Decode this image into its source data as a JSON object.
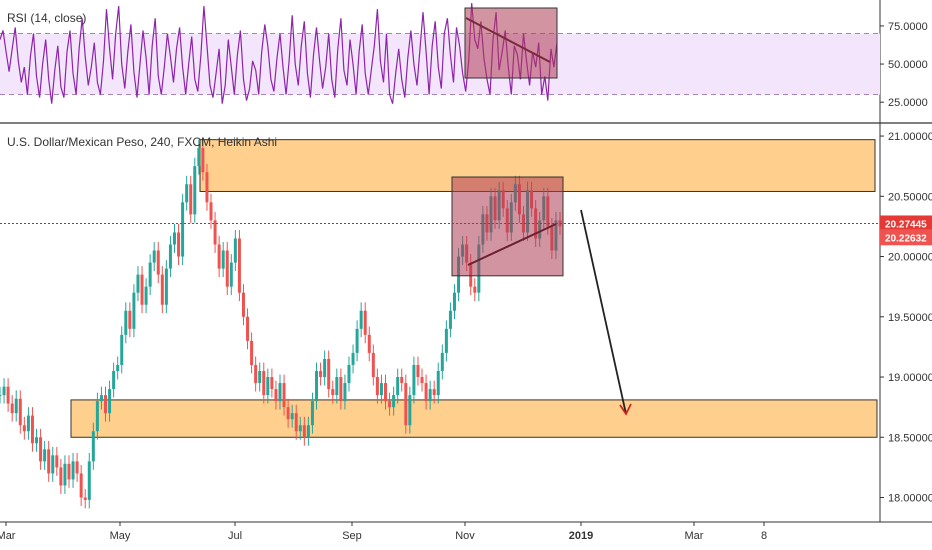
{
  "chart_data": [
    {
      "type": "line",
      "title": "RSI (14, close)",
      "ylim": [
        12,
        92
      ],
      "y_ticks": [
        25,
        50,
        75
      ],
      "y_tick_labels": [
        "25.0000",
        "50.0000",
        "75.0000"
      ],
      "band": [
        30,
        70
      ],
      "series": [
        {
          "color": "#8e24aa",
          "x": [
            0,
            3,
            6,
            9,
            12,
            15,
            18,
            21,
            24,
            27,
            30,
            33,
            36,
            39,
            42,
            45,
            48,
            51,
            54,
            57,
            60,
            63,
            66,
            69,
            72,
            75,
            78,
            81,
            84,
            87,
            90,
            93,
            96,
            99,
            102,
            105,
            108,
            111,
            114,
            117,
            120,
            123,
            126,
            129,
            132,
            135,
            138,
            141,
            144,
            147,
            150,
            153,
            156,
            159,
            162,
            165,
            168,
            171,
            174,
            177,
            180,
            183,
            186,
            189,
            192,
            195,
            198,
            201,
            204,
            207,
            210,
            213,
            216,
            219,
            222,
            225,
            228,
            231,
            234,
            237,
            240,
            243,
            246,
            249,
            252,
            255,
            258,
            261,
            264,
            267,
            270,
            273,
            276,
            279,
            282,
            285,
            288,
            291,
            294,
            297,
            300,
            303,
            306,
            309,
            312,
            315,
            318,
            321,
            324,
            327,
            330,
            333,
            336,
            339,
            342,
            345,
            348,
            351,
            354,
            357,
            360,
            363,
            366,
            369,
            372,
            375,
            378,
            381,
            384,
            387,
            390,
            393,
            396,
            399,
            402,
            405,
            408,
            411,
            414,
            417,
            420,
            423,
            426,
            429,
            432,
            435,
            438,
            441,
            444,
            447,
            450,
            453,
            456,
            459,
            462,
            465,
            468,
            471,
            474,
            477,
            480,
            483,
            486,
            489,
            492,
            495,
            498,
            501,
            504,
            507,
            510,
            513,
            516,
            519,
            522,
            525,
            528,
            531,
            534,
            537,
            540,
            543,
            546,
            549
          ],
          "values": [
            66,
            72,
            58,
            45,
            60,
            74,
            52,
            38,
            48,
            30,
            55,
            70,
            42,
            28,
            50,
            66,
            40,
            24,
            46,
            62,
            35,
            28,
            58,
            72,
            44,
            30,
            60,
            80,
            55,
            36,
            48,
            64,
            38,
            30,
            52,
            86,
            60,
            40,
            70,
            88,
            50,
            34,
            58,
            76,
            45,
            28,
            50,
            72,
            54,
            30,
            62,
            80,
            42,
            30,
            48,
            70,
            55,
            38,
            60,
            74,
            48,
            30,
            50,
            68,
            40,
            32,
            56,
            88,
            62,
            36,
            28,
            44,
            60,
            24,
            36,
            66,
            48,
            30,
            56,
            72,
            40,
            26,
            34,
            52,
            46,
            30,
            58,
            76,
            62,
            40,
            32,
            54,
            70,
            48,
            30,
            52,
            82,
            50,
            36,
            62,
            78,
            44,
            28,
            56,
            74,
            52,
            34,
            48,
            70,
            40,
            28,
            60,
            80,
            46,
            36,
            66,
            50,
            30,
            58,
            76,
            44,
            30,
            46,
            62,
            86,
            52,
            38,
            70,
            30,
            24,
            44,
            60,
            40,
            28,
            54,
            72,
            50,
            36,
            60,
            84,
            58,
            30,
            62,
            78,
            48,
            34,
            70,
            80,
            56,
            38,
            74,
            62,
            44,
            32,
            52,
            90,
            66,
            60,
            78,
            54,
            40,
            30,
            66,
            84,
            46,
            58,
            72,
            48,
            30,
            62,
            56,
            40,
            70,
            52,
            36,
            58,
            48,
            64,
            30,
            42,
            26,
            60,
            48,
            64
          ]
        }
      ]
    },
    {
      "type": "line",
      "title": "U.S. Dollar/Mexican Peso, 240, FXCM, Heikin Ashi",
      "ylim": [
        17.83,
        21.1
      ],
      "y_ticks": [
        18.0,
        18.5,
        19.0,
        19.5,
        20.0,
        20.5,
        21.0
      ],
      "y_tick_labels": [
        "18.00000",
        "18.50000",
        "19.00000",
        "19.50000",
        "20.00000",
        "20.50000",
        "21.00000"
      ],
      "x_labels": [
        "Mar",
        "May",
        "Jul",
        "Sep",
        "Nov",
        "2019",
        "Mar",
        "8"
      ],
      "last_price": "20.27445",
      "second_price": "20.22632",
      "colors": {
        "up": "#26a69a",
        "down": "#ef5350",
        "zone": "#ffc77a",
        "zone_border": "#333333",
        "rsi_band": "#f3e5fb",
        "last_price_bg": "#e53935",
        "second_price_bg": "#ef5350"
      },
      "series": [
        {
          "name": "",
          "x": [
            0,
            4,
            8,
            12,
            16,
            20,
            24,
            28,
            32,
            36,
            40,
            44,
            48,
            52,
            56,
            60,
            64,
            68,
            72,
            76,
            80,
            84,
            88,
            92,
            96,
            100,
            104,
            108,
            112,
            116,
            120,
            124,
            128,
            132,
            136,
            140,
            144,
            148,
            152,
            156,
            160,
            164,
            168,
            172,
            176,
            180,
            184,
            188,
            192,
            196,
            200,
            204,
            208,
            212,
            216,
            220,
            224,
            228,
            232,
            236,
            240,
            244,
            248,
            252,
            256,
            260,
            264,
            268,
            272,
            276,
            280,
            284,
            288,
            292,
            296,
            300,
            304,
            308,
            312,
            316,
            320,
            324,
            328,
            332,
            336,
            340,
            344,
            348,
            352,
            356,
            360,
            364,
            368,
            372,
            376,
            380,
            384,
            388,
            392,
            396,
            400,
            404,
            408,
            412,
            416,
            420,
            424,
            428,
            432,
            436,
            440,
            444,
            448,
            452,
            456,
            460,
            464,
            468,
            472,
            476,
            480,
            484,
            488,
            492,
            496,
            500,
            504,
            508,
            512,
            516,
            520,
            524,
            528,
            532,
            536,
            540,
            544,
            548,
            552
          ],
          "values": [
            18.85,
            18.92,
            18.78,
            18.7,
            18.82,
            18.6,
            18.55,
            18.68,
            18.45,
            18.5,
            18.3,
            18.4,
            18.2,
            18.35,
            18.25,
            18.1,
            18.28,
            18.15,
            18.3,
            18.2,
            18.0,
            17.98,
            18.3,
            18.55,
            18.8,
            18.85,
            18.7,
            18.9,
            19.05,
            19.1,
            19.35,
            19.55,
            19.4,
            19.7,
            19.85,
            19.6,
            19.75,
            19.95,
            20.05,
            19.85,
            19.6,
            19.9,
            20.1,
            20.2,
            20.0,
            20.45,
            20.6,
            20.35,
            20.75,
            20.9,
            20.7,
            20.45,
            20.3,
            20.1,
            19.9,
            20.05,
            19.75,
            19.95,
            20.15,
            19.7,
            19.5,
            19.3,
            19.1,
            18.95,
            19.05,
            18.85,
            19.0,
            18.9,
            18.8,
            18.95,
            18.75,
            18.65,
            18.7,
            18.55,
            18.6,
            18.5,
            18.6,
            18.8,
            19.05,
            19.0,
            19.15,
            18.9,
            18.85,
            19.0,
            18.8,
            18.95,
            19.1,
            19.2,
            19.4,
            19.55,
            19.35,
            19.2,
            19.0,
            18.85,
            18.95,
            18.8,
            18.75,
            18.85,
            19.0,
            18.95,
            18.6,
            18.85,
            19.1,
            19.0,
            18.95,
            18.8,
            18.9,
            18.85,
            19.05,
            19.2,
            19.4,
            19.55,
            19.7,
            20.0,
            20.1,
            19.95,
            19.75,
            19.7,
            20.1,
            20.35,
            20.2,
            20.5,
            20.3,
            20.55,
            20.4,
            20.2,
            20.45,
            20.6,
            20.35,
            20.2,
            20.55,
            20.4,
            20.15,
            20.3,
            20.5,
            20.25,
            20.05,
            20.3,
            20.25
          ]
        }
      ]
    }
  ]
}
